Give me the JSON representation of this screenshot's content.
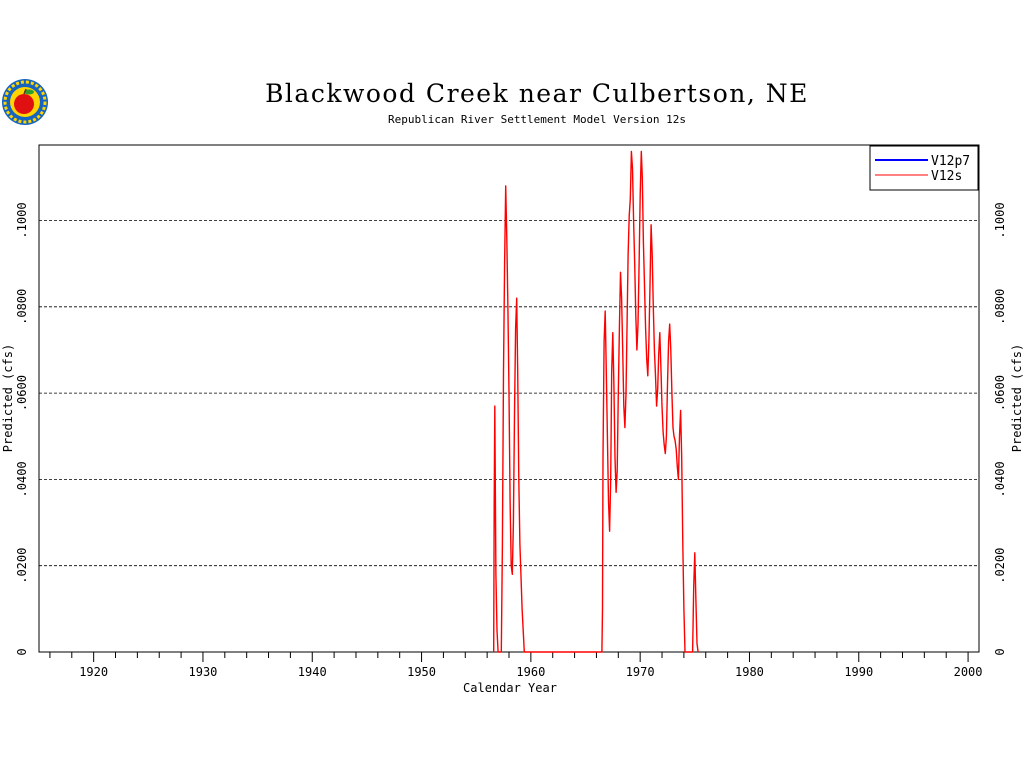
{
  "chart_data": {
    "type": "line",
    "title": "Blackwood Creek near Culbertson, NE",
    "subtitle": "Republican River Settlement Model Version 12s",
    "xlabel": "Calendar Year",
    "ylabel_left": "Predicted (cfs)",
    "ylabel_right": "Predicted (cfs)",
    "xlim": [
      1915,
      2001
    ],
    "ylim": [
      0,
      0.1175
    ],
    "x_ticks": [
      1920,
      1930,
      1940,
      1950,
      1960,
      1970,
      1980,
      1990,
      2000
    ],
    "y_ticks": [
      {
        "value": 0,
        "label": "0"
      },
      {
        "value": 0.02,
        "label": ".0200"
      },
      {
        "value": 0.04,
        "label": ".0400"
      },
      {
        "value": 0.06,
        "label": ".0600"
      },
      {
        "value": 0.08,
        "label": ".0800"
      },
      {
        "value": 0.1,
        "label": ".1000"
      }
    ],
    "grid": "horizontal dashed",
    "legend_position": "top-right",
    "series": [
      {
        "name": "V12p7",
        "color": "#0000ff",
        "points": []
      },
      {
        "name": "V12s",
        "color": "#ff0000",
        "points": [
          [
            1956.6,
            0
          ],
          [
            1956.65,
            0.035
          ],
          [
            1956.7,
            0.057
          ],
          [
            1956.8,
            0.018
          ],
          [
            1956.9,
            0.005
          ],
          [
            1957.0,
            0
          ],
          [
            1957.3,
            0
          ],
          [
            1957.4,
            0.025
          ],
          [
            1957.5,
            0.065
          ],
          [
            1957.6,
            0.09
          ],
          [
            1957.7,
            0.108
          ],
          [
            1957.8,
            0.096
          ],
          [
            1957.9,
            0.08
          ],
          [
            1958.0,
            0.06
          ],
          [
            1958.1,
            0.035
          ],
          [
            1958.2,
            0.02
          ],
          [
            1958.3,
            0.018
          ],
          [
            1958.4,
            0.03
          ],
          [
            1958.5,
            0.055
          ],
          [
            1958.6,
            0.075
          ],
          [
            1958.7,
            0.082
          ],
          [
            1958.8,
            0.065
          ],
          [
            1958.9,
            0.04
          ],
          [
            1959.0,
            0.025
          ],
          [
            1959.2,
            0.01
          ],
          [
            1959.4,
            0
          ],
          [
            1966.5,
            0
          ],
          [
            1966.55,
            0.01
          ],
          [
            1966.6,
            0.045
          ],
          [
            1966.7,
            0.072
          ],
          [
            1966.8,
            0.079
          ],
          [
            1966.9,
            0.065
          ],
          [
            1967.0,
            0.05
          ],
          [
            1967.1,
            0.035
          ],
          [
            1967.2,
            0.028
          ],
          [
            1967.3,
            0.04
          ],
          [
            1967.4,
            0.065
          ],
          [
            1967.5,
            0.074
          ],
          [
            1967.6,
            0.062
          ],
          [
            1967.7,
            0.045
          ],
          [
            1967.8,
            0.037
          ],
          [
            1967.9,
            0.042
          ],
          [
            1968.0,
            0.06
          ],
          [
            1968.1,
            0.075
          ],
          [
            1968.2,
            0.088
          ],
          [
            1968.3,
            0.082
          ],
          [
            1968.4,
            0.07
          ],
          [
            1968.5,
            0.057
          ],
          [
            1968.6,
            0.052
          ],
          [
            1968.7,
            0.06
          ],
          [
            1968.8,
            0.075
          ],
          [
            1968.9,
            0.092
          ],
          [
            1969.0,
            0.101
          ],
          [
            1969.1,
            0.105
          ],
          [
            1969.2,
            0.116
          ],
          [
            1969.3,
            0.112
          ],
          [
            1969.4,
            0.1
          ],
          [
            1969.5,
            0.09
          ],
          [
            1969.6,
            0.078
          ],
          [
            1969.7,
            0.07
          ],
          [
            1969.8,
            0.076
          ],
          [
            1969.9,
            0.09
          ],
          [
            1970.0,
            0.106
          ],
          [
            1970.1,
            0.116
          ],
          [
            1970.2,
            0.11
          ],
          [
            1970.3,
            0.095
          ],
          [
            1970.4,
            0.085
          ],
          [
            1970.5,
            0.075
          ],
          [
            1970.6,
            0.068
          ],
          [
            1970.7,
            0.064
          ],
          [
            1970.8,
            0.072
          ],
          [
            1970.9,
            0.085
          ],
          [
            1971.0,
            0.099
          ],
          [
            1971.1,
            0.092
          ],
          [
            1971.2,
            0.08
          ],
          [
            1971.3,
            0.07
          ],
          [
            1971.4,
            0.064
          ],
          [
            1971.5,
            0.057
          ],
          [
            1971.6,
            0.061
          ],
          [
            1971.7,
            0.069
          ],
          [
            1971.8,
            0.074
          ],
          [
            1971.9,
            0.066
          ],
          [
            1972.0,
            0.057
          ],
          [
            1972.1,
            0.051
          ],
          [
            1972.2,
            0.048
          ],
          [
            1972.3,
            0.046
          ],
          [
            1972.4,
            0.05
          ],
          [
            1972.5,
            0.062
          ],
          [
            1972.6,
            0.072
          ],
          [
            1972.7,
            0.076
          ],
          [
            1972.8,
            0.07
          ],
          [
            1972.9,
            0.06
          ],
          [
            1973.0,
            0.052
          ],
          [
            1973.1,
            0.05
          ],
          [
            1973.2,
            0.049
          ],
          [
            1973.3,
            0.047
          ],
          [
            1973.4,
            0.043
          ],
          [
            1973.5,
            0.04
          ],
          [
            1973.6,
            0.05
          ],
          [
            1973.7,
            0.056
          ],
          [
            1973.8,
            0.045
          ],
          [
            1973.9,
            0.025
          ],
          [
            1974.0,
            0.01
          ],
          [
            1974.1,
            0
          ],
          [
            1974.8,
            0
          ],
          [
            1974.9,
            0.015
          ],
          [
            1975.0,
            0.023
          ],
          [
            1975.1,
            0.012
          ],
          [
            1975.2,
            0.002
          ],
          [
            1975.3,
            0
          ]
        ]
      }
    ]
  }
}
